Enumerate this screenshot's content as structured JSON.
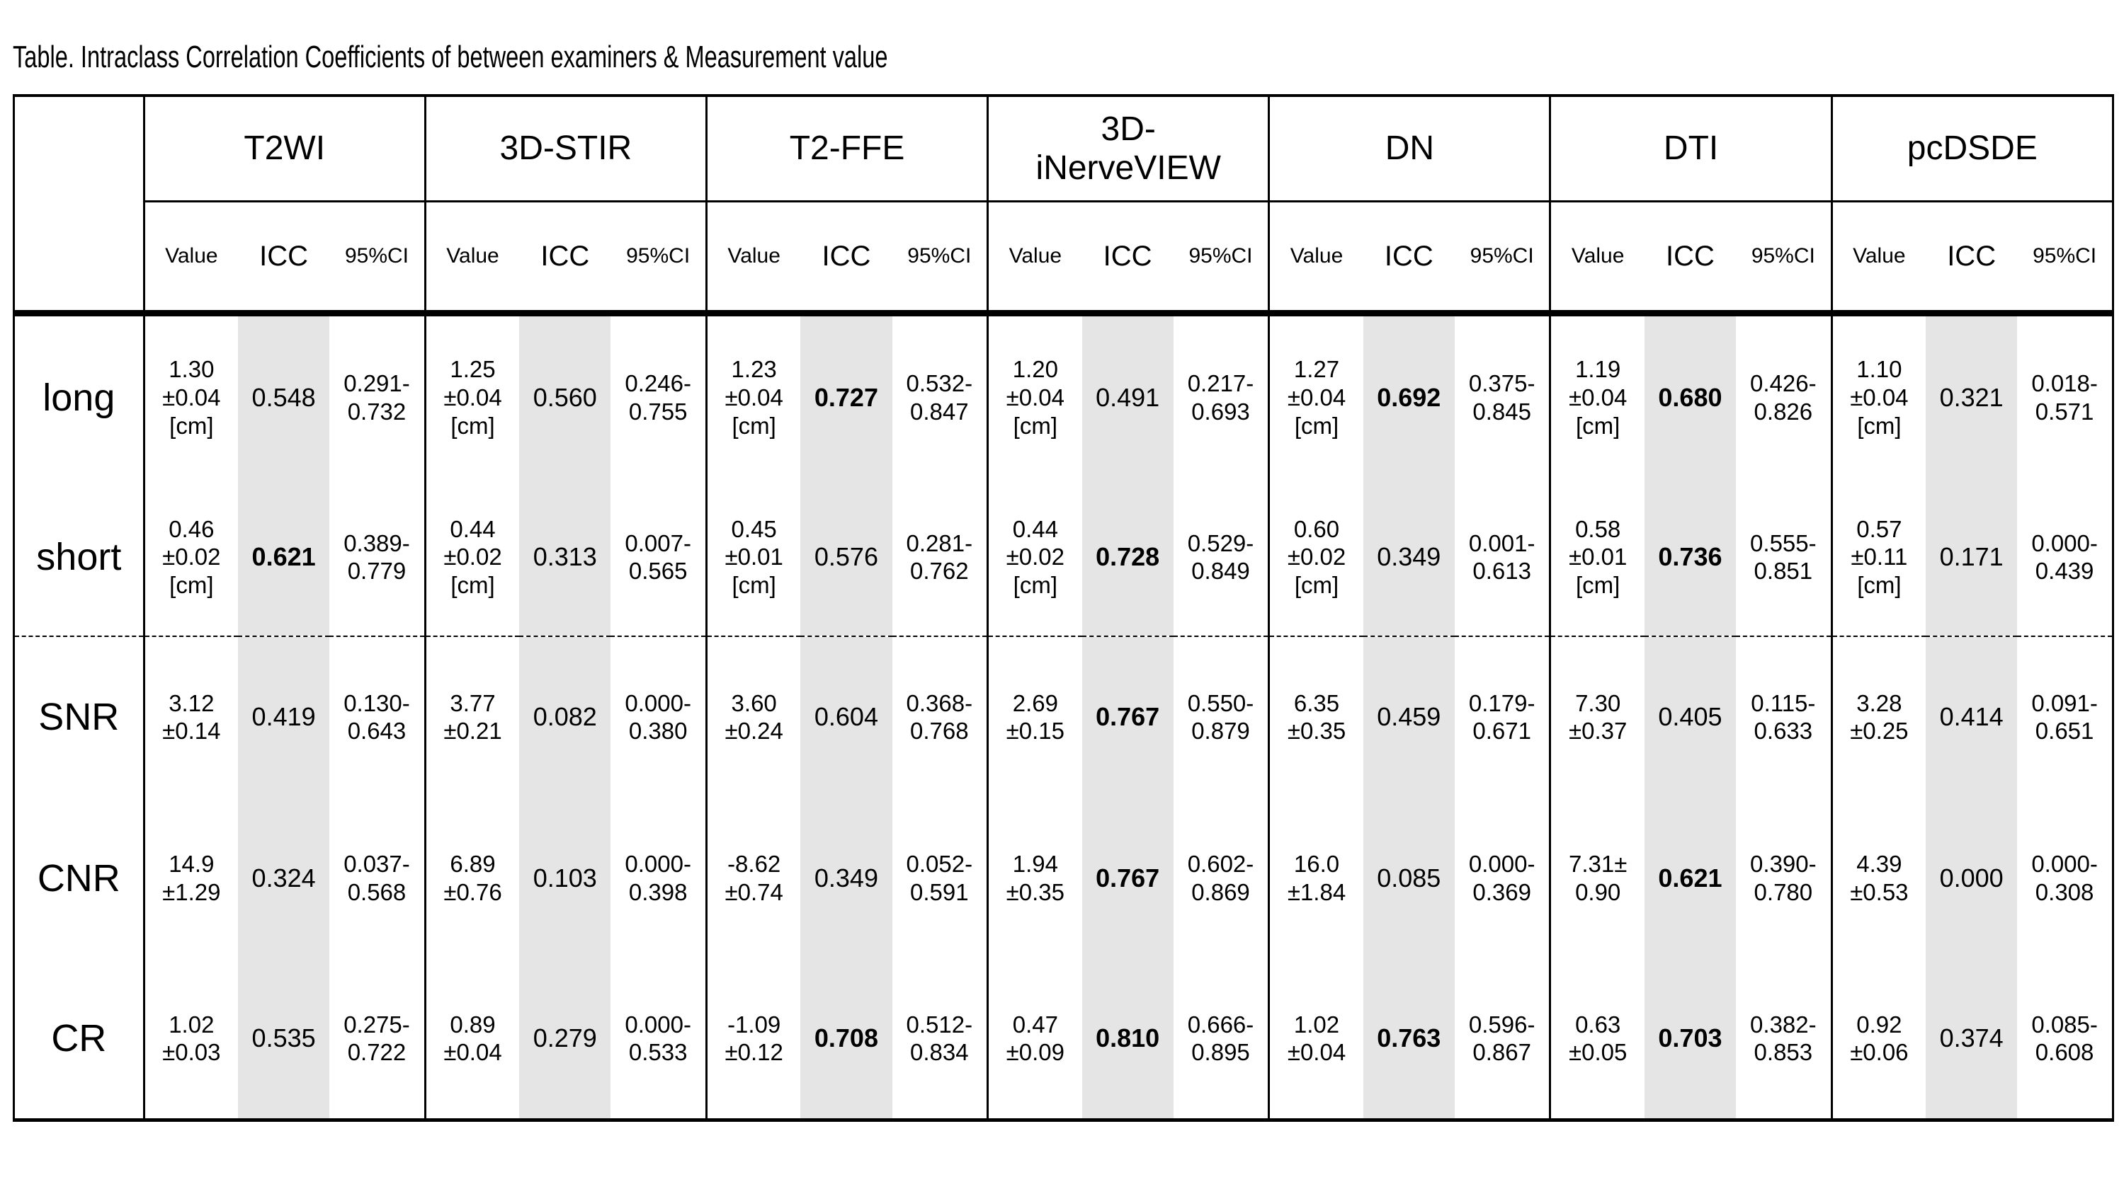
{
  "title": "Table. Intraclass Correlation Coefficients of between examiners & Measurement value",
  "colors": {
    "background": "#ffffff",
    "icc_band": "#e5e5e5",
    "border": "#000000",
    "text": "#000000"
  },
  "table": {
    "groups": [
      "T2WI",
      "3D-STIR",
      "T2-FFE",
      "3D-\niNerveVIEW",
      "DN",
      "DTI",
      "pcDSDE"
    ],
    "subheaders": {
      "value": "Value",
      "icc": "ICC",
      "ci": "95%CI"
    },
    "rows": [
      {
        "label": "long",
        "cells": [
          {
            "value": "1.30\n±0.04\n[cm]",
            "icc": "0.548",
            "icc_bold": false,
            "ci": "0.291-\n0.732"
          },
          {
            "value": "1.25\n±0.04\n[cm]",
            "icc": "0.560",
            "icc_bold": false,
            "ci": "0.246-\n0.755"
          },
          {
            "value": "1.23\n±0.04\n[cm]",
            "icc": "0.727",
            "icc_bold": true,
            "ci": "0.532-\n0.847"
          },
          {
            "value": "1.20\n±0.04\n[cm]",
            "icc": "0.491",
            "icc_bold": false,
            "ci": "0.217-\n0.693"
          },
          {
            "value": "1.27\n±0.04\n[cm]",
            "icc": "0.692",
            "icc_bold": true,
            "ci": "0.375-\n0.845"
          },
          {
            "value": "1.19\n±0.04\n[cm]",
            "icc": "0.680",
            "icc_bold": true,
            "ci": "0.426-\n0.826"
          },
          {
            "value": "1.10\n±0.04\n[cm]",
            "icc": "0.321",
            "icc_bold": false,
            "ci": "0.018-\n0.571"
          }
        ]
      },
      {
        "label": "short",
        "cells": [
          {
            "value": "0.46\n±0.02\n[cm]",
            "icc": "0.621",
            "icc_bold": true,
            "ci": "0.389-\n0.779"
          },
          {
            "value": "0.44\n±0.02\n[cm]",
            "icc": "0.313",
            "icc_bold": false,
            "ci": "0.007-\n0.565"
          },
          {
            "value": "0.45\n±0.01\n[cm]",
            "icc": "0.576",
            "icc_bold": false,
            "ci": "0.281-\n0.762"
          },
          {
            "value": "0.44\n±0.02\n[cm]",
            "icc": "0.728",
            "icc_bold": true,
            "ci": "0.529-\n0.849"
          },
          {
            "value": "0.60\n±0.02\n[cm]",
            "icc": "0.349",
            "icc_bold": false,
            "ci": "0.001-\n0.613"
          },
          {
            "value": "0.58\n±0.01\n[cm]",
            "icc": "0.736",
            "icc_bold": true,
            "ci": "0.555-\n0.851"
          },
          {
            "value": "0.57\n±0.11\n[cm]",
            "icc": "0.171",
            "icc_bold": false,
            "ci": "0.000-\n0.439"
          }
        ]
      },
      {
        "label": "SNR",
        "cells": [
          {
            "value": "3.12\n±0.14",
            "icc": "0.419",
            "icc_bold": false,
            "ci": "0.130-\n0.643"
          },
          {
            "value": "3.77\n±0.21",
            "icc": "0.082",
            "icc_bold": false,
            "ci": "0.000-\n0.380"
          },
          {
            "value": "3.60\n±0.24",
            "icc": "0.604",
            "icc_bold": false,
            "ci": "0.368-\n0.768"
          },
          {
            "value": "2.69\n±0.15",
            "icc": "0.767",
            "icc_bold": true,
            "ci": "0.550-\n0.879"
          },
          {
            "value": "6.35\n±0.35",
            "icc": "0.459",
            "icc_bold": false,
            "ci": "0.179-\n0.671"
          },
          {
            "value": "7.30\n±0.37",
            "icc": "0.405",
            "icc_bold": false,
            "ci": "0.115-\n0.633"
          },
          {
            "value": "3.28\n±0.25",
            "icc": "0.414",
            "icc_bold": false,
            "ci": "0.091-\n0.651"
          }
        ]
      },
      {
        "label": "CNR",
        "cells": [
          {
            "value": "14.9\n±1.29",
            "icc": "0.324",
            "icc_bold": false,
            "ci": "0.037-\n0.568"
          },
          {
            "value": "6.89\n±0.76",
            "icc": "0.103",
            "icc_bold": false,
            "ci": "0.000-\n0.398"
          },
          {
            "value": "-8.62\n±0.74",
            "icc": "0.349",
            "icc_bold": false,
            "ci": "0.052-\n0.591"
          },
          {
            "value": "1.94\n±0.35",
            "icc": "0.767",
            "icc_bold": true,
            "ci": "0.602-\n0.869"
          },
          {
            "value": "16.0\n±1.84",
            "icc": "0.085",
            "icc_bold": false,
            "ci": "0.000-\n0.369"
          },
          {
            "value": "7.31±\n0.90",
            "icc": "0.621",
            "icc_bold": true,
            "ci": "0.390-\n0.780"
          },
          {
            "value": "4.39\n±0.53",
            "icc": "0.000",
            "icc_bold": false,
            "ci": "0.000-\n0.308"
          }
        ]
      },
      {
        "label": "CR",
        "cells": [
          {
            "value": "1.02\n±0.03",
            "icc": "0.535",
            "icc_bold": false,
            "ci": "0.275-\n0.722"
          },
          {
            "value": "0.89\n±0.04",
            "icc": "0.279",
            "icc_bold": false,
            "ci": "0.000-\n0.533"
          },
          {
            "value": "-1.09\n±0.12",
            "icc": "0.708",
            "icc_bold": true,
            "ci": "0.512-\n0.834"
          },
          {
            "value": "0.47\n±0.09",
            "icc": "0.810",
            "icc_bold": true,
            "ci": "0.666-\n0.895"
          },
          {
            "value": "1.02\n±0.04",
            "icc": "0.763",
            "icc_bold": true,
            "ci": "0.596-\n0.867"
          },
          {
            "value": "0.63\n±0.05",
            "icc": "0.703",
            "icc_bold": true,
            "ci": "0.382-\n0.853"
          },
          {
            "value": "0.92\n±0.06",
            "icc": "0.374",
            "icc_bold": false,
            "ci": "0.085-\n0.608"
          }
        ]
      }
    ]
  }
}
